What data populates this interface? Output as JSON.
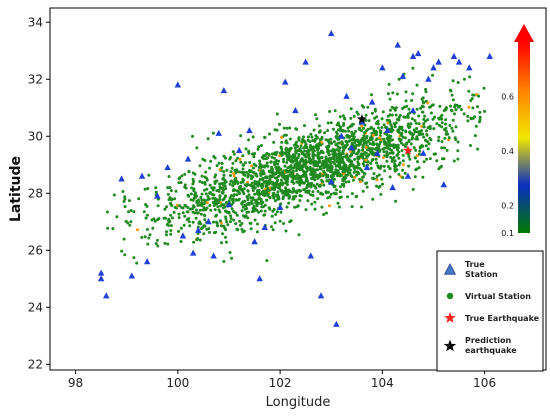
{
  "chart_data": {
    "type": "scatter",
    "title": "",
    "xlabel": "Longitude",
    "ylabel": "Latitude",
    "xlim": [
      97.5,
      107.2
    ],
    "ylim": [
      21.8,
      34.5
    ],
    "x_ticks": [
      98,
      100,
      102,
      104,
      106
    ],
    "y_ticks": [
      22,
      24,
      26,
      28,
      30,
      32,
      34
    ],
    "legend_position": "bottom-right",
    "legend": [
      {
        "label": "True Station",
        "label_lines": [
          "True",
          "Station"
        ],
        "marker": "triangle",
        "color": "#1f3fd6"
      },
      {
        "label": "Virtual Station",
        "marker": "circle",
        "color": "#1f8a1f"
      },
      {
        "label": "True Earthquake",
        "marker": "star",
        "color": "#ff2020"
      },
      {
        "label": "Prediction earthquake",
        "label_lines": [
          "Prediction",
          "earthquake"
        ],
        "marker": "star",
        "color": "#000000"
      }
    ],
    "colorbar": {
      "ticks": [
        0.1,
        0.2,
        0.4,
        0.6
      ],
      "vmin": 0.1,
      "vmax": 0.8,
      "colors": [
        "#007a00",
        "#0a2fbf",
        "#f2e600",
        "#ff8000",
        "#ff0000"
      ]
    },
    "series": [
      {
        "name": "True Station",
        "marker": "triangle",
        "color": "#1f3fd6",
        "points": [
          [
            98.5,
            25.2
          ],
          [
            98.5,
            25.0
          ],
          [
            98.6,
            24.4
          ],
          [
            98.9,
            28.5
          ],
          [
            99.1,
            25.1
          ],
          [
            99.3,
            28.6
          ],
          [
            99.4,
            25.6
          ],
          [
            99.6,
            27.9
          ],
          [
            99.8,
            28.9
          ],
          [
            100.0,
            31.8
          ],
          [
            100.1,
            26.5
          ],
          [
            100.2,
            29.2
          ],
          [
            100.3,
            25.9
          ],
          [
            100.4,
            26.7
          ],
          [
            100.6,
            27.0
          ],
          [
            100.7,
            25.8
          ],
          [
            100.8,
            30.1
          ],
          [
            100.9,
            31.6
          ],
          [
            101.0,
            27.6
          ],
          [
            101.2,
            29.5
          ],
          [
            101.4,
            30.2
          ],
          [
            101.5,
            26.3
          ],
          [
            101.6,
            25.0
          ],
          [
            101.7,
            26.8
          ],
          [
            102.0,
            27.5
          ],
          [
            102.1,
            31.9
          ],
          [
            102.3,
            30.9
          ],
          [
            102.5,
            32.6
          ],
          [
            102.6,
            25.8
          ],
          [
            102.8,
            24.4
          ],
          [
            103.0,
            33.6
          ],
          [
            103.0,
            28.4
          ],
          [
            103.1,
            23.4
          ],
          [
            103.2,
            30.0
          ],
          [
            103.4,
            29.6
          ],
          [
            103.6,
            30.5
          ],
          [
            103.7,
            28.9
          ],
          [
            103.8,
            31.2
          ],
          [
            103.9,
            29.4
          ],
          [
            104.0,
            32.4
          ],
          [
            104.1,
            30.2
          ],
          [
            104.2,
            28.2
          ],
          [
            104.3,
            33.2
          ],
          [
            104.4,
            32.1
          ],
          [
            104.5,
            28.6
          ],
          [
            104.6,
            32.8
          ],
          [
            104.7,
            32.9
          ],
          [
            104.8,
            29.4
          ],
          [
            105.0,
            32.4
          ],
          [
            105.1,
            32.6
          ],
          [
            105.2,
            28.3
          ],
          [
            105.4,
            32.8
          ],
          [
            105.5,
            32.6
          ],
          [
            105.7,
            32.4
          ],
          [
            106.1,
            32.8
          ],
          [
            104.9,
            32.0
          ],
          [
            103.3,
            31.4
          ],
          [
            104.6,
            30.9
          ]
        ]
      },
      {
        "name": "Virtual Station",
        "marker": "circle",
        "color": "#1f8a1f",
        "count": 2200,
        "center": [
          102.6,
          28.9
        ],
        "spread": [
          1.5,
          1.1
        ],
        "correlation": 0.78,
        "xrange": [
          98.6,
          106.0
        ],
        "yrange": [
          23.8,
          33.0
        ],
        "secondary_color": "#ff9900",
        "secondary_fraction": 0.03
      },
      {
        "name": "True Earthquake",
        "marker": "star",
        "color": "#ff2020",
        "points": [
          [
            104.5,
            29.5
          ]
        ]
      },
      {
        "name": "Prediction earthquake",
        "marker": "star",
        "color": "#000000",
        "points": [
          [
            103.6,
            30.6
          ]
        ]
      }
    ]
  }
}
